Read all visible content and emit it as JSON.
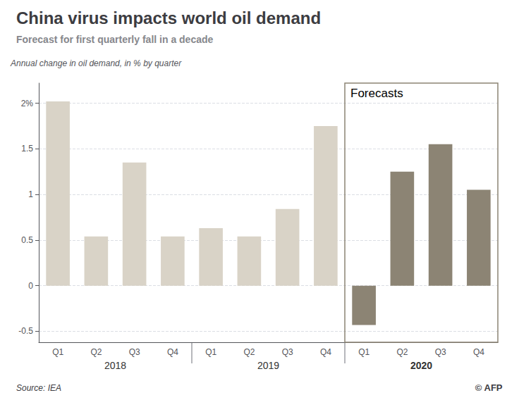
{
  "chart_data": {
    "type": "bar",
    "title": "China virus impacts world oil demand",
    "subtitle": "Forecast for first quarterly fall in a decade",
    "y_label": "Annual change in oil demand, in % by quarter",
    "source": "Source: IEA",
    "credit": "© AFP",
    "categories": [
      "Q1",
      "Q2",
      "Q3",
      "Q4",
      "Q1",
      "Q2",
      "Q3",
      "Q4",
      "Q1",
      "Q2",
      "Q3",
      "Q4"
    ],
    "year_labels": [
      "2018",
      "2019",
      "2020"
    ],
    "values": [
      2.02,
      0.54,
      1.35,
      0.54,
      0.63,
      0.54,
      0.84,
      1.75,
      -0.43,
      1.25,
      1.55,
      1.05
    ],
    "colors": [
      "#d9d3c7",
      "#d9d3c7",
      "#d9d3c7",
      "#d9d3c7",
      "#d9d3c7",
      "#d9d3c7",
      "#d9d3c7",
      "#d9d3c7",
      "#8c8474",
      "#8c8474",
      "#8c8474",
      "#8c8474"
    ],
    "annotations": [
      {
        "text": "Forecasts",
        "start_index": 8
      }
    ],
    "ylim": [
      -0.62,
      2.22
    ],
    "yticks": [
      -0.5,
      0,
      0.5,
      1,
      1.5,
      {
        "value": 2,
        "label": "2%"
      }
    ],
    "grid": true
  }
}
